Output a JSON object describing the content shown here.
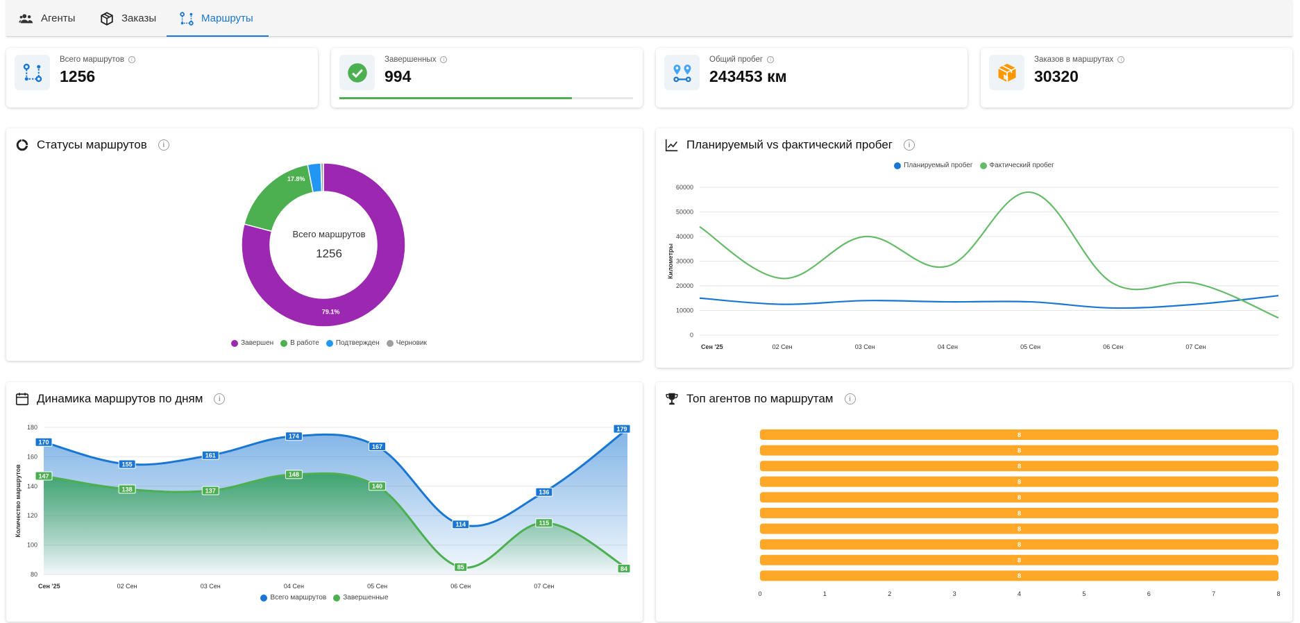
{
  "tabs": [
    {
      "label": "Агенты",
      "icon": "users-icon"
    },
    {
      "label": "Заказы",
      "icon": "box-icon"
    },
    {
      "label": "Маршруты",
      "icon": "route-icon",
      "active": true
    }
  ],
  "kpis": [
    {
      "label": "Всего маршрутов",
      "value": "1256",
      "icon": "route-icon",
      "color": "#1976d2"
    },
    {
      "label": "Завершенных",
      "value": "994",
      "icon": "check-circle-icon",
      "color": "#4caf50",
      "progress": 0.791
    },
    {
      "label": "Общий пробег",
      "value": "243453 км",
      "icon": "map-pins-icon",
      "color": "#42a5f5"
    },
    {
      "label": "Заказов в маршрутах",
      "value": "30320",
      "icon": "package-icon",
      "color": "#ff9800"
    }
  ],
  "status_panel": {
    "title": "Статусы маршрутов",
    "center_label": "Всего маршрутов",
    "center_value": "1256"
  },
  "mileage_panel": {
    "title": "Планируемый vs фактический пробег"
  },
  "dynamics_panel": {
    "title": "Динамика маршрутов по дням"
  },
  "agents_panel": {
    "title": "Топ агентов по маршрутам"
  },
  "chart_data": [
    {
      "type": "pie",
      "labels": [
        "Завершен",
        "В работе",
        "Подтвержден",
        "Черновик"
      ],
      "values": [
        79.1,
        17.8,
        2.6,
        0.5
      ],
      "data_labels": [
        "79.1%",
        "17.8%",
        "",
        ""
      ],
      "colors": [
        "#9c27b0",
        "#4caf50",
        "#2196f3",
        "#9e9e9e"
      ],
      "legend": "bottom"
    },
    {
      "type": "line",
      "categories": [
        "Сен '25",
        "02 Сен",
        "03 Сен",
        "04 Сен",
        "05 Сен",
        "06 Сен",
        "07 Сен",
        ""
      ],
      "series": [
        {
          "name": "Планируемый пробег",
          "color": "#1976d2",
          "values": [
            15000,
            12500,
            14000,
            13500,
            13500,
            11000,
            12500,
            16000
          ]
        },
        {
          "name": "Фактический пробег",
          "color": "#66bb6a",
          "values": [
            44000,
            23000,
            40000,
            28000,
            58000,
            21000,
            21000,
            7000
          ]
        }
      ],
      "ylabel": "Километры",
      "ylim": [
        0,
        60000
      ],
      "yticks": [
        0,
        10000,
        20000,
        30000,
        40000,
        50000,
        60000
      ],
      "legend": "top"
    },
    {
      "type": "area",
      "categories": [
        "Сен '25",
        "02 Сен",
        "03 Сен",
        "04 Сен",
        "05 Сен",
        "06 Сен",
        "07 Сен",
        ""
      ],
      "series": [
        {
          "name": "Всего маршрутов",
          "color": "#1976d2",
          "values": [
            170,
            155,
            161,
            174,
            167,
            114,
            136,
            179
          ]
        },
        {
          "name": "Завершенные",
          "color": "#4caf50",
          "values": [
            147,
            138,
            137,
            148,
            140,
            85,
            115,
            84
          ]
        }
      ],
      "ylabel": "Количество маршрутов",
      "ylim": [
        80,
        180
      ],
      "yticks": [
        80,
        100,
        120,
        140,
        160,
        180
      ],
      "legend": "bottom"
    },
    {
      "type": "bar",
      "orientation": "horizontal",
      "categories": [
        "",
        "",
        "",
        "",
        "",
        "",
        "",
        "",
        "",
        ""
      ],
      "values": [
        8,
        8,
        8,
        8,
        8,
        8,
        8,
        8,
        8,
        8
      ],
      "color": "#ffa726",
      "xlim": [
        0,
        8
      ],
      "xticks": [
        0,
        1,
        2,
        3,
        4,
        5,
        6,
        7,
        8
      ]
    }
  ]
}
